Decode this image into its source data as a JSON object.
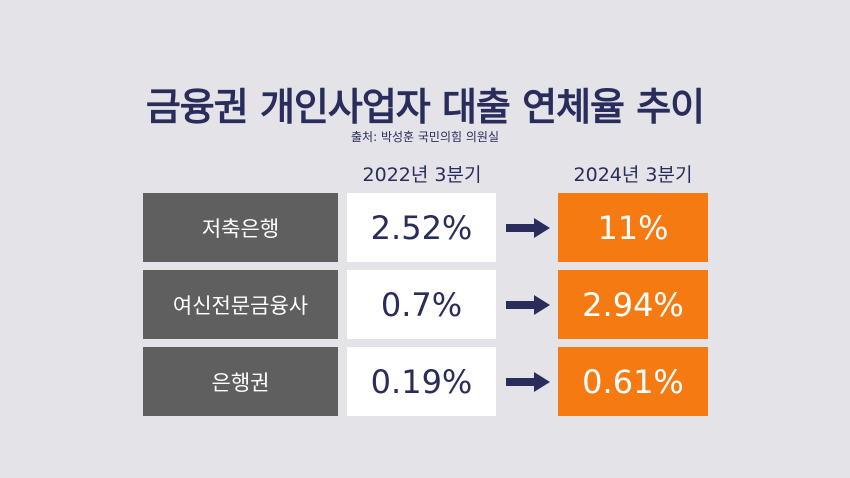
{
  "header": {
    "title": "금융권 개인사업자 대출 연체율 추이",
    "source": "출처: 박성훈 국민의힘 의원실"
  },
  "columns": {
    "before": "2022년 3분기",
    "after": "2024년 3분기"
  },
  "rows": [
    {
      "label": "저축은행",
      "before": "2.52%",
      "after": "11%"
    },
    {
      "label": "여신전문금융사",
      "before": "0.7%",
      "after": "2.94%"
    },
    {
      "label": "은행권",
      "before": "0.19%",
      "after": "0.61%"
    }
  ],
  "colors": {
    "background": "#e4e3e8",
    "title_text": "#2a2c5c",
    "label_box": "#5f5f5f",
    "before_box": "#ffffff",
    "after_box": "#f47a11",
    "arrow": "#2a2c5c"
  },
  "chart_data": {
    "type": "table",
    "title": "금융권 개인사업자 대출 연체율 추이",
    "categories": [
      "저축은행",
      "여신전문금융사",
      "은행권"
    ],
    "series": [
      {
        "name": "2022년 3분기",
        "values": [
          2.52,
          0.7,
          0.19
        ]
      },
      {
        "name": "2024년 3분기",
        "values": [
          11,
          2.94,
          0.61
        ]
      }
    ]
  }
}
